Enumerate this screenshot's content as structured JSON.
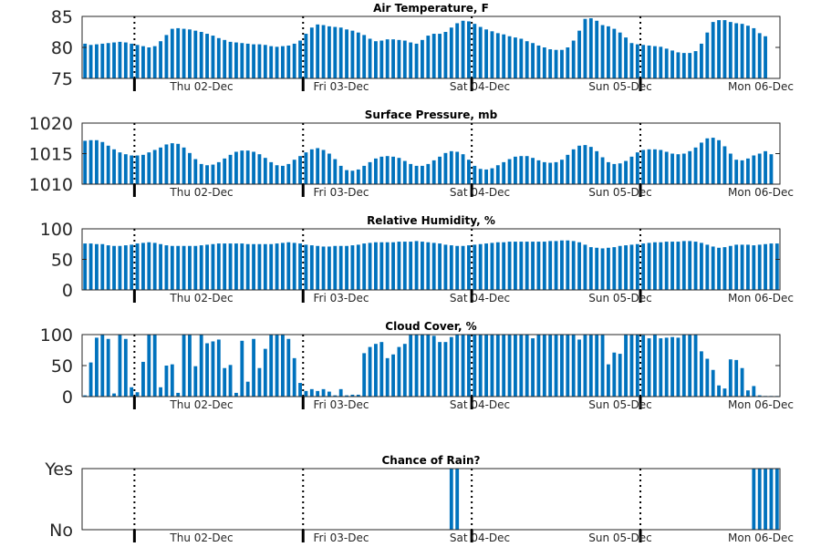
{
  "colors": {
    "bar": "#0072bd",
    "axis": "#262626",
    "divider": "#000000"
  },
  "chart_data": [
    {
      "type": "bar",
      "title": "Air Temperature, F",
      "ylim": [
        75,
        85
      ],
      "yticks": [
        "75",
        "80",
        "85"
      ],
      "xtick_labels": [
        "Thu 02-Dec",
        "Fri 03-Dec",
        "Sat 04-Dec",
        "Sun 05-Dec",
        "Mon 06-Dec"
      ],
      "values": [
        80.6,
        80.4,
        80.5,
        80.6,
        80.7,
        80.8,
        80.9,
        80.8,
        80.6,
        80.4,
        80.2,
        80.0,
        80.2,
        81.0,
        82.0,
        83.0,
        83.1,
        83.0,
        82.9,
        82.7,
        82.5,
        82.2,
        81.9,
        81.5,
        81.2,
        80.9,
        80.8,
        80.7,
        80.6,
        80.5,
        80.5,
        80.4,
        80.2,
        80.1,
        80.2,
        80.3,
        80.6,
        81.1,
        82.2,
        83.2,
        83.7,
        83.6,
        83.4,
        83.3,
        83.2,
        82.9,
        82.7,
        82.4,
        82.0,
        81.4,
        81.0,
        81.1,
        81.3,
        81.3,
        81.2,
        81.1,
        80.8,
        80.6,
        81.2,
        81.9,
        82.2,
        82.2,
        82.5,
        83.2,
        83.9,
        84.3,
        84.2,
        83.8,
        83.3,
        82.9,
        82.6,
        82.3,
        82.1,
        81.8,
        81.6,
        81.4,
        81.0,
        80.7,
        80.3,
        80.0,
        79.7,
        79.6,
        79.6,
        80.0,
        81.1,
        82.7,
        84.6,
        84.7,
        84.3,
        83.6,
        83.4,
        83.0,
        82.4,
        81.6,
        80.7,
        80.5,
        80.4,
        80.3,
        80.2,
        80.1,
        79.8,
        79.5,
        79.2,
        79.1,
        79.1,
        79.4,
        80.6,
        82.4,
        84.1,
        84.4,
        84.4,
        84.1,
        83.9,
        83.8,
        83.5,
        83.1,
        82.3,
        81.8
      ]
    },
    {
      "type": "bar",
      "title": "Surface Pressure, mb",
      "ylim": [
        1010,
        1020
      ],
      "yticks": [
        "1010",
        "1015",
        "1020"
      ],
      "xtick_labels": [
        "Thu 02-Dec",
        "Fri 03-Dec",
        "Sat 04-Dec",
        "Sun 05-Dec",
        "Mon 06-Dec"
      ],
      "values": [
        1017.1,
        1017.2,
        1017.2,
        1016.9,
        1016.3,
        1015.7,
        1015.2,
        1014.9,
        1014.7,
        1014.7,
        1014.8,
        1015.2,
        1015.6,
        1016.0,
        1016.5,
        1016.7,
        1016.6,
        1016.0,
        1015.1,
        1014.1,
        1013.3,
        1013.1,
        1013.2,
        1013.6,
        1014.2,
        1014.8,
        1015.3,
        1015.5,
        1015.5,
        1015.3,
        1014.9,
        1014.3,
        1013.6,
        1013.1,
        1013.0,
        1013.3,
        1014.0,
        1014.6,
        1015.2,
        1015.7,
        1015.9,
        1015.6,
        1015.0,
        1014.1,
        1013.0,
        1012.3,
        1012.2,
        1012.4,
        1013.0,
        1013.6,
        1014.2,
        1014.5,
        1014.6,
        1014.5,
        1014.3,
        1013.8,
        1013.3,
        1013.0,
        1013.0,
        1013.3,
        1013.9,
        1014.5,
        1015.1,
        1015.4,
        1015.3,
        1014.9,
        1014.0,
        1013.0,
        1012.5,
        1012.4,
        1012.6,
        1013.1,
        1013.6,
        1014.1,
        1014.5,
        1014.6,
        1014.6,
        1014.3,
        1013.9,
        1013.6,
        1013.5,
        1013.6,
        1014.0,
        1014.8,
        1015.7,
        1016.3,
        1016.4,
        1016.1,
        1015.4,
        1014.4,
        1013.6,
        1013.3,
        1013.4,
        1013.8,
        1014.5,
        1015.2,
        1015.6,
        1015.7,
        1015.7,
        1015.6,
        1015.3,
        1015.0,
        1014.9,
        1015.0,
        1015.4,
        1016.0,
        1016.8,
        1017.5,
        1017.6,
        1017.2,
        1016.2,
        1015.0,
        1014.0,
        1013.9,
        1014.2,
        1014.7,
        1015.0,
        1015.4,
        1014.9
      ]
    },
    {
      "type": "bar",
      "title": "Relative Humidity, %",
      "ylim": [
        0,
        100
      ],
      "yticks": [
        "0",
        "50",
        "100"
      ],
      "xtick_labels": [
        "Thu 02-Dec",
        "Fri 03-Dec",
        "Sat 04-Dec",
        "Sun 05-Dec",
        "Mon 06-Dec"
      ],
      "values": [
        76,
        76,
        75,
        75,
        73,
        72,
        72,
        73,
        74,
        76,
        77,
        78,
        77,
        75,
        73,
        72,
        72,
        72,
        72,
        72,
        73,
        74,
        75,
        76,
        76,
        76,
        76,
        76,
        75,
        75,
        75,
        75,
        75,
        76,
        77,
        78,
        77,
        76,
        74,
        73,
        72,
        71,
        71,
        72,
        72,
        72,
        73,
        74,
        76,
        77,
        78,
        78,
        78,
        78,
        79,
        79,
        79,
        80,
        79,
        78,
        77,
        76,
        74,
        73,
        72,
        72,
        73,
        74,
        75,
        76,
        77,
        78,
        78,
        79,
        79,
        79,
        79,
        79,
        79,
        79,
        80,
        80,
        81,
        81,
        80,
        78,
        74,
        70,
        69,
        68,
        69,
        70,
        72,
        73,
        74,
        75,
        76,
        77,
        78,
        78,
        79,
        79,
        79,
        80,
        80,
        79,
        77,
        74,
        71,
        69,
        70,
        72,
        74,
        74,
        74,
        73,
        74,
        75,
        76,
        76
      ]
    },
    {
      "type": "bar",
      "title": "Cloud Cover, %",
      "ylim": [
        0,
        100
      ],
      "yticks": [
        "0",
        "50",
        "100"
      ],
      "xtick_labels": [
        "Thu 02-Dec",
        "Fri 03-Dec",
        "Sat 04-Dec",
        "Sun 05-Dec",
        "Mon 06-Dec"
      ],
      "values": [
        2,
        55,
        95,
        100,
        93,
        5,
        100,
        93,
        15,
        7,
        56,
        100,
        100,
        15,
        50,
        52,
        6,
        100,
        100,
        49,
        100,
        86,
        89,
        92,
        46,
        51,
        6,
        90,
        24,
        93,
        46,
        77,
        100,
        100,
        100,
        93,
        62,
        22,
        9,
        12,
        9,
        12,
        8,
        2,
        12,
        2,
        3,
        3,
        70,
        80,
        85,
        88,
        62,
        68,
        80,
        85,
        100,
        100,
        100,
        100,
        98,
        88,
        88,
        96,
        100,
        100,
        100,
        100,
        100,
        100,
        100,
        100,
        100,
        100,
        100,
        100,
        100,
        94,
        100,
        100,
        100,
        100,
        100,
        100,
        100,
        92,
        100,
        100,
        100,
        100,
        52,
        71,
        69,
        100,
        100,
        100,
        99,
        94,
        100,
        94,
        95,
        96,
        95,
        100,
        100,
        100,
        73,
        61,
        43,
        18,
        13,
        60,
        59,
        46,
        10,
        17,
        2,
        1,
        1,
        1
      ]
    },
    {
      "type": "bar",
      "title": "Chance of Rain?",
      "ylim": [
        0,
        1
      ],
      "yticks": [
        "No",
        "Yes"
      ],
      "xtick_labels": [
        "Thu 02-Dec",
        "Fri 03-Dec",
        "Sat 04-Dec",
        "Sun 05-Dec",
        "Mon 06-Dec"
      ],
      "values": [
        0,
        0,
        0,
        0,
        0,
        0,
        0,
        0,
        0,
        0,
        0,
        0,
        0,
        0,
        0,
        0,
        0,
        0,
        0,
        0,
        0,
        0,
        0,
        0,
        0,
        0,
        0,
        0,
        0,
        0,
        0,
        0,
        0,
        0,
        0,
        0,
        0,
        0,
        0,
        0,
        0,
        0,
        0,
        0,
        0,
        0,
        0,
        0,
        0,
        0,
        0,
        0,
        0,
        0,
        0,
        0,
        0,
        0,
        0,
        0,
        0,
        0,
        0,
        1,
        1,
        0,
        0,
        0,
        0,
        0,
        0,
        0,
        0,
        0,
        0,
        0,
        0,
        0,
        0,
        0,
        0,
        0,
        0,
        0,
        0,
        0,
        0,
        0,
        0,
        0,
        0,
        0,
        0,
        0,
        0,
        0,
        0,
        0,
        0,
        0,
        0,
        0,
        0,
        0,
        0,
        0,
        0,
        0,
        0,
        0,
        0,
        0,
        0,
        0,
        0,
        1,
        1,
        1,
        1,
        1
      ]
    }
  ]
}
